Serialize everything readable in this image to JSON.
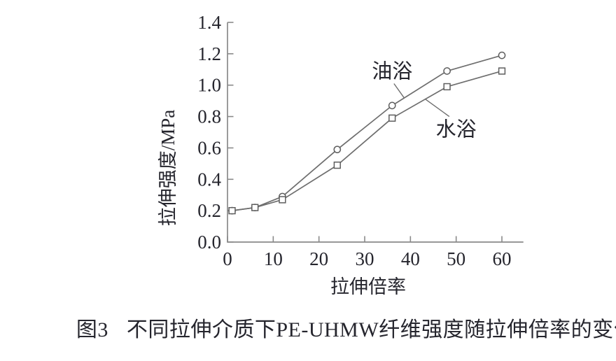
{
  "figure": {
    "caption": {
      "label": "图3",
      "text": "不同拉伸介质下PE-UHMW纤维强度随拉伸倍率的变化"
    }
  },
  "chart_data": {
    "type": "line",
    "title": "",
    "xlabel": "拉伸倍率",
    "ylabel": "拉伸强度/MPa",
    "x": [
      1,
      6,
      12,
      24,
      36,
      48,
      60
    ],
    "series": [
      {
        "name": "油浴",
        "marker": "circle",
        "values": [
          0.2,
          0.22,
          0.29,
          0.59,
          0.87,
          1.09,
          1.19
        ]
      },
      {
        "name": "水浴",
        "marker": "square",
        "values": [
          0.2,
          0.22,
          0.27,
          0.49,
          0.79,
          0.99,
          1.09
        ]
      }
    ],
    "xticks": [
      0,
      10,
      20,
      30,
      40,
      50,
      60
    ],
    "yticks": [
      0.0,
      0.2,
      0.4,
      0.6,
      0.8,
      1.0,
      1.2,
      1.4
    ],
    "xlim": [
      0,
      64.7
    ],
    "ylim": [
      0,
      1.4
    ],
    "grid": false,
    "legend": "inline-annotations",
    "colors": {
      "line": "#6e6e6e",
      "marker_stroke": "#5e5e5e",
      "marker_fill": "#ffffff",
      "axis": "#8a8a8a",
      "text": "#25252d"
    },
    "annotations": [
      {
        "text": "油浴",
        "label_at": [
          36.0,
          1.09
        ],
        "line_from": [
          36.4,
          1.01
        ],
        "line_to": [
          38.6,
          0.92
        ]
      },
      {
        "text": "水浴",
        "label_at": [
          50.0,
          0.72
        ],
        "line_from": [
          43.3,
          0.91
        ],
        "line_to": [
          48.5,
          0.8
        ]
      }
    ]
  }
}
